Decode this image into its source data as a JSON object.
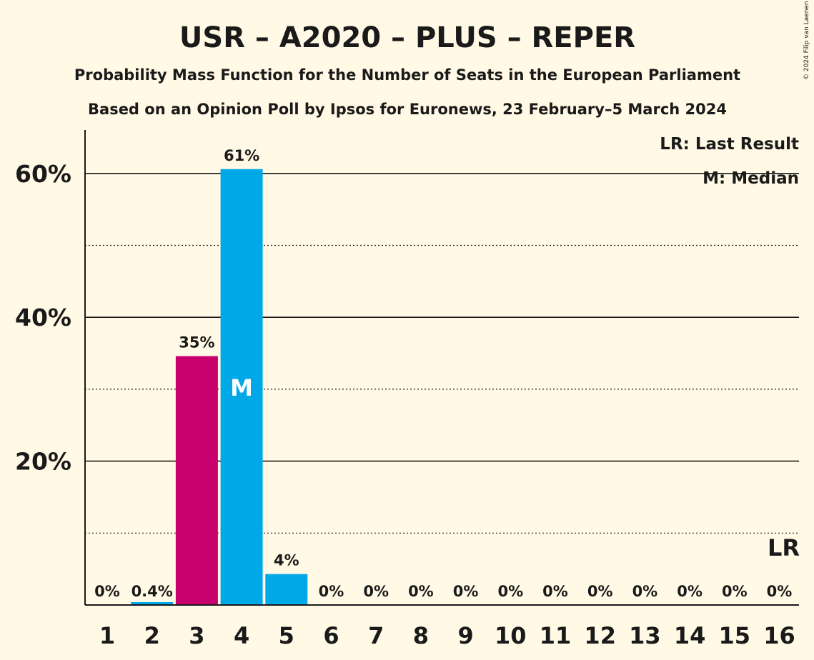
{
  "chart_data": {
    "type": "bar",
    "title": "USR – A2020 – PLUS – REPER",
    "subtitle": "Probability Mass Function for the Number of Seats in the European Parliament",
    "subtitle2": "Based on an Opinion Poll by Ipsos for Euronews, 23 February–5 March 2024",
    "categories": [
      "1",
      "2",
      "3",
      "4",
      "5",
      "6",
      "7",
      "8",
      "9",
      "10",
      "11",
      "12",
      "13",
      "14",
      "15",
      "16"
    ],
    "values": [
      0,
      0.4,
      35,
      61,
      4,
      0,
      0,
      0,
      0,
      0,
      0,
      0,
      0,
      0,
      0,
      0
    ],
    "plot_values": [
      0,
      0.4,
      34.6,
      60.6,
      4.3,
      0,
      0,
      0,
      0,
      0,
      0,
      0,
      0,
      0,
      0,
      0
    ],
    "value_labels": [
      "0%",
      "0.4%",
      "35%",
      "61%",
      "4%",
      "0%",
      "0%",
      "0%",
      "0%",
      "0%",
      "0%",
      "0%",
      "0%",
      "0%",
      "0%",
      "0%"
    ],
    "bar_colors": [
      "#00A8E7",
      "#00A8E7",
      "#C8006E",
      "#00A8E7",
      "#00A8E7",
      "#00A8E7",
      "#00A8E7",
      "#00A8E7",
      "#00A8E7",
      "#00A8E7",
      "#00A8E7",
      "#00A8E7",
      "#00A8E7",
      "#00A8E7",
      "#00A8E7",
      "#00A8E7"
    ],
    "ylim": [
      0,
      66
    ],
    "y_ticks": [
      {
        "value": 20,
        "label": "20%"
      },
      {
        "value": 40,
        "label": "40%"
      },
      {
        "value": 60,
        "label": "60%"
      }
    ],
    "minor_gridlines": [
      10,
      30,
      50
    ],
    "median_seat": "4",
    "median_marker": "M",
    "last_result_seat": "16",
    "last_result_marker": "LR",
    "legend": [
      "LR: Last Result",
      "M: Median"
    ],
    "legend_position": "top-right",
    "grid": true
  },
  "copyright": "© 2024 Filip van Laenen",
  "colors": {
    "background": "#FFF9E5",
    "primary": "#00A8E7",
    "accent": "#C8006E",
    "text": "#1A1A1A"
  }
}
